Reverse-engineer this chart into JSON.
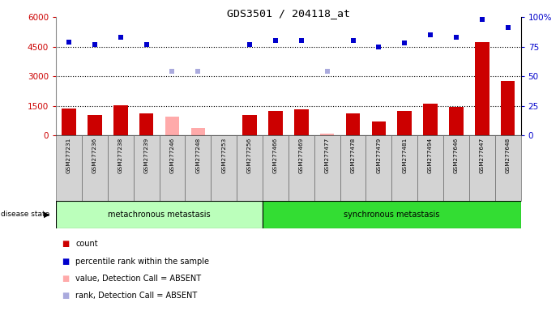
{
  "title": "GDS3501 / 204118_at",
  "samples": [
    "GSM277231",
    "GSM277236",
    "GSM277238",
    "GSM277239",
    "GSM277246",
    "GSM277248",
    "GSM277253",
    "GSM277256",
    "GSM277466",
    "GSM277469",
    "GSM277477",
    "GSM277478",
    "GSM277479",
    "GSM277481",
    "GSM277494",
    "GSM277646",
    "GSM277647",
    "GSM277648"
  ],
  "counts": [
    1350,
    1050,
    1520,
    1100,
    null,
    null,
    null,
    1050,
    1250,
    1300,
    null,
    1100,
    700,
    1250,
    1600,
    1450,
    4750,
    2750
  ],
  "counts_absent": [
    null,
    null,
    null,
    null,
    950,
    380,
    null,
    null,
    null,
    null,
    90,
    null,
    null,
    null,
    null,
    null,
    null,
    null
  ],
  "percentile_ranks": [
    79,
    77,
    83,
    77,
    null,
    null,
    null,
    77,
    80,
    80,
    null,
    80,
    75,
    78,
    85,
    83,
    98,
    91
  ],
  "ranks_absent": [
    null,
    null,
    null,
    null,
    54,
    54,
    null,
    null,
    null,
    null,
    54,
    null,
    null,
    null,
    null,
    null,
    null,
    null
  ],
  "metachronous_count": 8,
  "synchronous_count": 10,
  "ylim_left": [
    0,
    6000
  ],
  "ylim_right": [
    0,
    100
  ],
  "yticks_left": [
    0,
    1500,
    3000,
    4500,
    6000
  ],
  "yticks_right": [
    0,
    25,
    50,
    75,
    100
  ],
  "bar_color": "#cc0000",
  "bar_absent_color": "#ffaaaa",
  "dot_color": "#0000cc",
  "dot_absent_color": "#aaaadd",
  "meta_bg": "#bbffbb",
  "sync_bg": "#33dd33",
  "tick_bg": "#d3d3d3",
  "grid_color": "#000000",
  "left_label_color": "#cc0000",
  "right_label_color": "#0000cc",
  "bg_color": "#ffffff"
}
